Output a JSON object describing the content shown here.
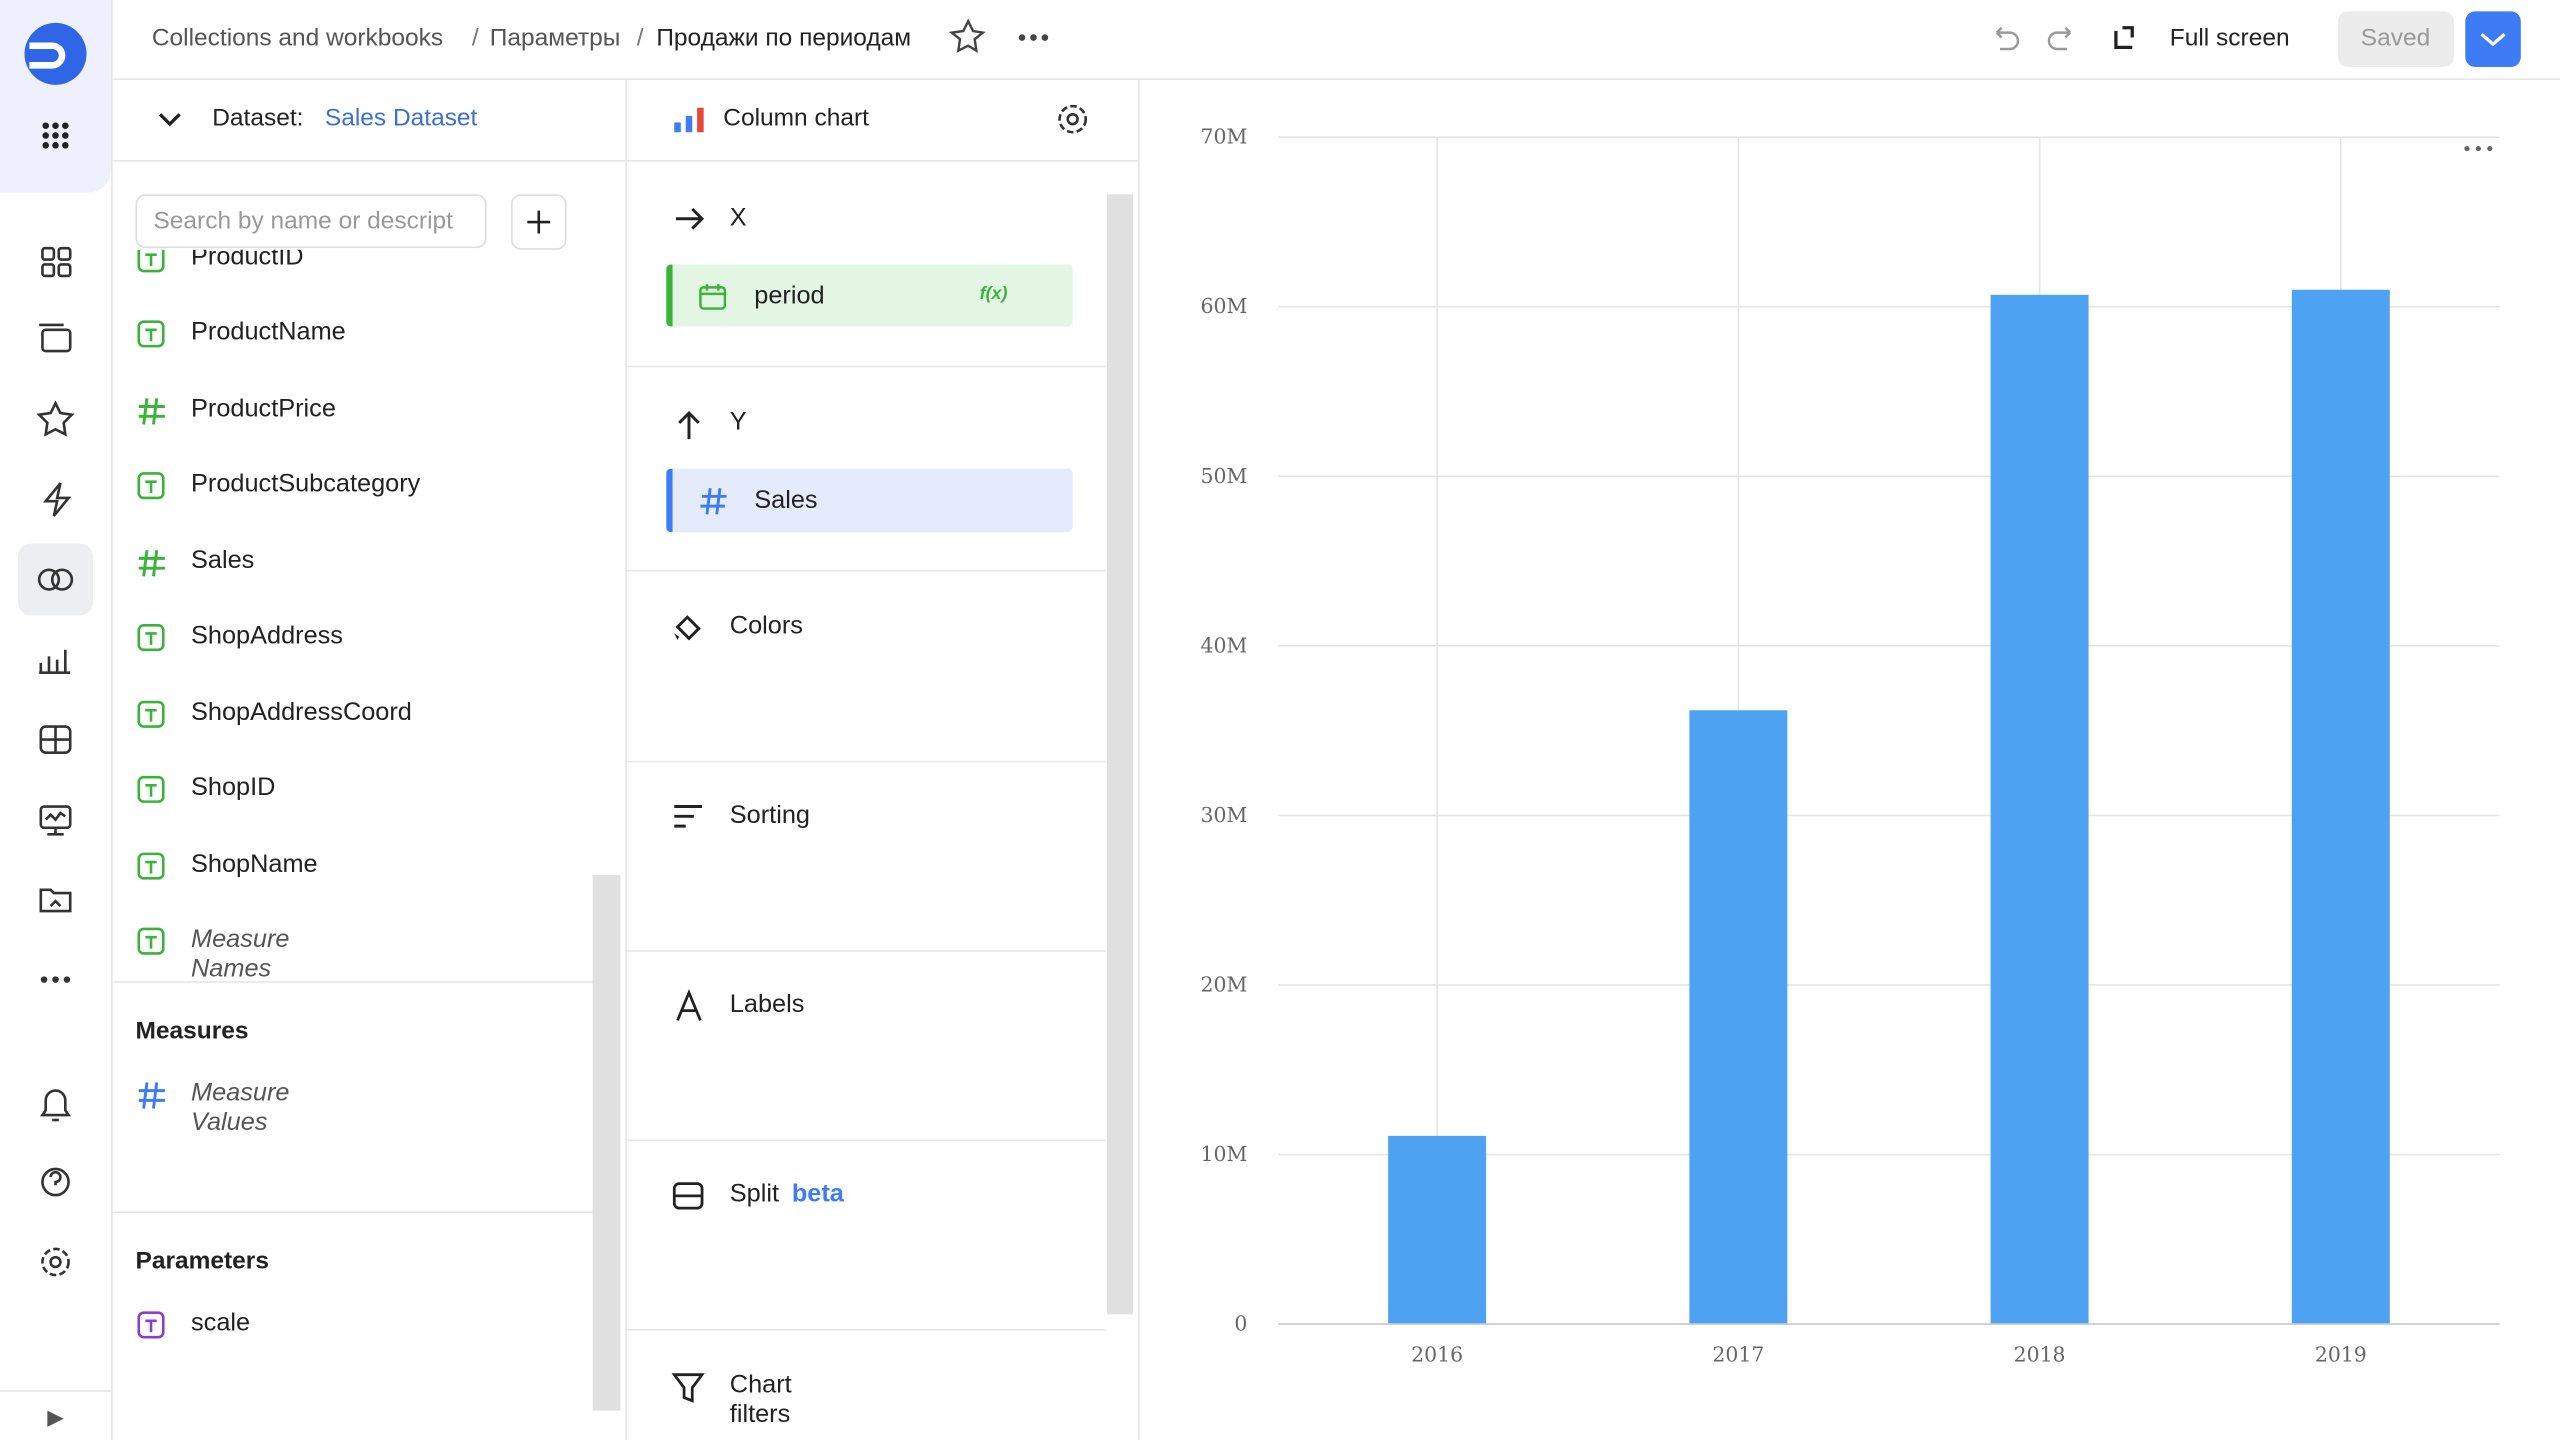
{
  "header": {
    "breadcrumbs": [
      "Collections and workbooks",
      "Параметры",
      "Продажи по периодам"
    ],
    "separator": "/",
    "full_screen": "Full screen",
    "saved": "Saved"
  },
  "dataset": {
    "label": "Dataset:",
    "name": "Sales Dataset",
    "search_placeholder": "Search by name or descript",
    "fields": [
      "ProductID",
      "ProductName",
      "ProductPrice",
      "ProductSubcategory",
      "Sales",
      "ShopAddress",
      "ShopAddressCoord",
      "ShopID",
      "ShopName",
      "Measure Names"
    ],
    "measures_title": "Measures",
    "measures": [
      "Measure Values"
    ],
    "parameters_title": "Parameters",
    "parameters": [
      "scale"
    ]
  },
  "wizard": {
    "chart_type": "Column chart",
    "x": {
      "title": "X",
      "field": "period",
      "formula_badge": "f(x)"
    },
    "y": {
      "title": "Y",
      "field": "Sales"
    },
    "sections": [
      "Colors",
      "Sorting",
      "Labels",
      "Split",
      "Chart filters"
    ],
    "split_badge": "beta"
  },
  "chart_data": {
    "type": "bar",
    "categories": [
      "2016",
      "2017",
      "2018",
      "2019"
    ],
    "values": [
      11100000,
      36200000,
      60700000,
      61000000
    ],
    "color": "#4da2f1",
    "ylim": [
      0,
      70000000
    ],
    "yticks": [
      0,
      {
        "value": 10000000,
        "label": "10M"
      },
      {
        "value": 20000000,
        "label": "20M"
      },
      {
        "value": 30000000,
        "label": "30M"
      },
      {
        "value": 40000000,
        "label": "40M"
      },
      {
        "value": 50000000,
        "label": "50M"
      },
      {
        "value": 60000000,
        "label": "60M"
      },
      {
        "value": 70000000,
        "label": "70M"
      }
    ],
    "grid": true
  }
}
